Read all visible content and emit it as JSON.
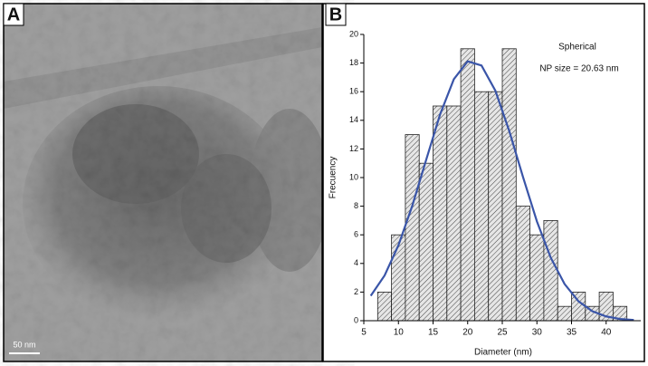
{
  "panel_labels": [
    "A",
    "B"
  ],
  "scale_bar": "50 nm",
  "chart_data": {
    "type": "histogram",
    "x_label": "Diameter (nm)",
    "y_label": "Frecuency",
    "bins": [
      7,
      9,
      11,
      13,
      15,
      17,
      19,
      21,
      23,
      25,
      27,
      29,
      31,
      33,
      35,
      37,
      39,
      41,
      43
    ],
    "values": [
      2,
      6,
      13,
      11,
      15,
      15,
      19,
      16,
      16,
      19,
      8,
      6,
      7,
      1,
      2,
      1,
      2,
      1
    ],
    "color": "#d9d9d9",
    "fit": {
      "color": "#3a55a8",
      "x": [
        6,
        8,
        10,
        12,
        14,
        16,
        18,
        20,
        22,
        24,
        26,
        28,
        30,
        32,
        34,
        36,
        38,
        40,
        42,
        44
      ],
      "values": [
        1.74,
        3.16,
        5.27,
        8.03,
        11.23,
        14.39,
        16.87,
        18.12,
        17.83,
        16.07,
        13.26,
        10.03,
        6.94,
        4.4,
        2.56,
        1.36,
        0.66,
        0.3,
        0.12,
        0.05
      ]
    },
    "annotations": [
      "Spherical",
      "NP size = 20.63 nm"
    ],
    "xlim": [
      5,
      45
    ],
    "ylim": [
      0,
      20
    ],
    "xticks": [
      5,
      10,
      15,
      20,
      25,
      30,
      35,
      40
    ],
    "yticks": [
      0,
      2,
      4,
      6,
      8,
      10,
      12,
      14,
      16,
      18,
      20
    ]
  }
}
